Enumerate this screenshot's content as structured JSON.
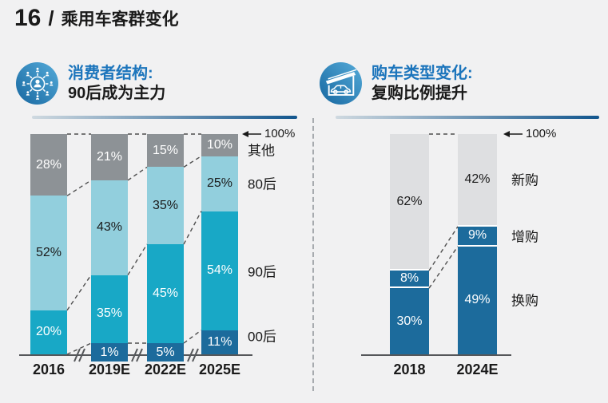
{
  "page": {
    "slide_number": "16",
    "slide_separator": "/",
    "slide_title": "乘用车客群变化"
  },
  "sections": [
    {
      "icon": "consumer-network-icon",
      "heading_accent": "消费者结构:",
      "heading_main": "90后成为主力"
    },
    {
      "icon": "car-garage-icon",
      "heading_accent": "购车类型变化:",
      "heading_main": "复购比例提升"
    }
  ],
  "chart_data": [
    {
      "type": "bar",
      "stacked": true,
      "title": "消费者结构: 90后成为主力",
      "categories": [
        "2016",
        "2019E",
        "2022E",
        "2025E"
      ],
      "series": [
        {
          "name": "00后",
          "color": "#1c6b9c",
          "label_color": "#ffffff",
          "values": [
            0,
            1,
            5,
            11
          ]
        },
        {
          "name": "90后",
          "color": "#18a8c6",
          "label_color": "#ffffff",
          "values": [
            20,
            35,
            45,
            54
          ]
        },
        {
          "name": "80后",
          "color": "#92cfdd",
          "label_color": "#1a1a1a",
          "values": [
            52,
            43,
            35,
            25
          ]
        },
        {
          "name": "其他",
          "color": "#8d9296",
          "label_color": "#ffffff",
          "values": [
            28,
            21,
            15,
            10
          ]
        }
      ],
      "ylim": [
        0,
        100
      ],
      "value_suffix": "%",
      "top_annotation": "100%",
      "axis_break": true,
      "legend_position": "right"
    },
    {
      "type": "bar",
      "stacked": true,
      "title": "购车类型变化: 复购比例提升",
      "categories": [
        "2018",
        "2024E"
      ],
      "series": [
        {
          "name": "换购",
          "color": "#1c6b9c",
          "label_color": "#ffffff",
          "values": [
            30,
            49
          ]
        },
        {
          "name": "增购",
          "color": "#1c6b9c",
          "label_color": "#ffffff",
          "values": [
            8,
            9
          ]
        },
        {
          "name": "新购",
          "color": "#dedfe1",
          "label_color": "#1a1a1a",
          "values": [
            62,
            42
          ]
        }
      ],
      "ylim": [
        0,
        100
      ],
      "value_suffix": "%",
      "top_annotation": "100%",
      "axis_break": false,
      "legend_position": "right"
    }
  ],
  "colors": {
    "background": "#f1f1f2",
    "heading_accent": "#1c75bc",
    "heading_main": "#1a1a1a",
    "underline_gradient_start": "#cfd9e0",
    "underline_gradient_end": "#12568e",
    "icon_circle_light": "#55abd9",
    "icon_circle_dark": "#1767a0",
    "axis": "#55575a",
    "dashed_line": "#4d4d4d",
    "divider": "#a7abaf"
  }
}
